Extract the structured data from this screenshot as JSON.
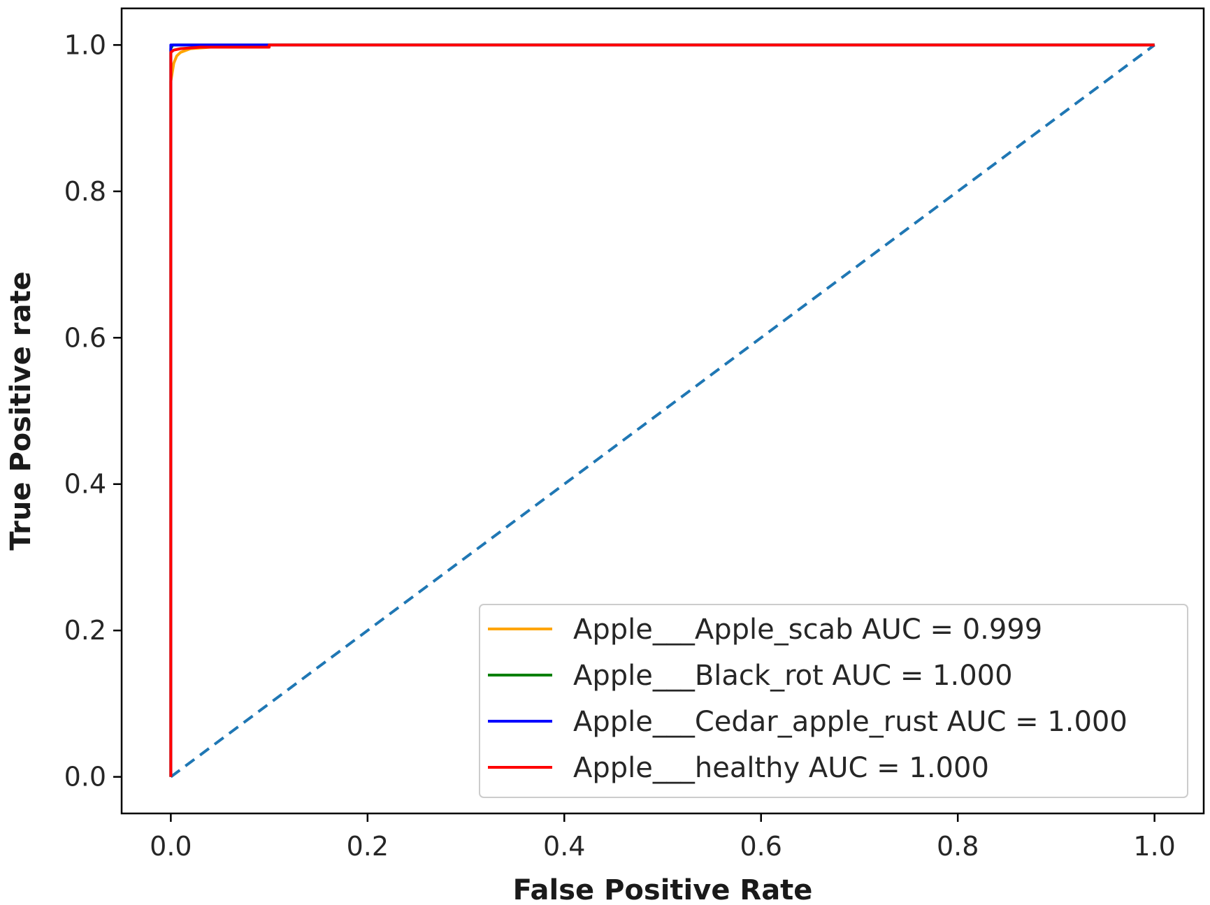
{
  "chart_data": {
    "type": "line",
    "title": "",
    "xlabel": "False Positive Rate",
    "ylabel": "True Positive rate",
    "xlim": [
      -0.05,
      1.05
    ],
    "ylim": [
      -0.05,
      1.05
    ],
    "xticks": [
      "0.0",
      "0.2",
      "0.4",
      "0.6",
      "0.8",
      "1.0"
    ],
    "yticks": [
      "0.0",
      "0.2",
      "0.4",
      "0.6",
      "0.8",
      "1.0"
    ],
    "grid": false,
    "legend_position": "lower-right",
    "series": [
      {
        "name": "Apple___Apple_scab AUC = 0.999",
        "color": "#ffa500",
        "x": [
          0.0,
          0.0,
          0.003,
          0.006,
          0.01,
          0.02,
          0.05,
          0.1,
          1.0
        ],
        "y": [
          0.0,
          0.95,
          0.975,
          0.985,
          0.99,
          0.995,
          0.998,
          1.0,
          1.0
        ]
      },
      {
        "name": "Apple___Black_rot AUC = 1.000",
        "color": "#008000",
        "x": [
          0.0,
          0.0,
          0.002,
          0.01,
          1.0
        ],
        "y": [
          0.0,
          0.995,
          1.0,
          1.0,
          1.0
        ]
      },
      {
        "name": "Apple___Cedar_apple_rust AUC = 1.000",
        "color": "#0000ff",
        "x": [
          0.0,
          0.0,
          0.1,
          1.0
        ],
        "y": [
          0.0,
          1.0,
          1.0,
          1.0
        ]
      },
      {
        "name": "Apple___healthy AUC = 1.000",
        "color": "#ff0000",
        "x": [
          0.0,
          0.0,
          0.003,
          0.01,
          0.03,
          0.1,
          0.1,
          1.0
        ],
        "y": [
          0.0,
          0.99,
          0.993,
          0.995,
          0.997,
          0.997,
          1.0,
          1.0
        ]
      }
    ],
    "reference_line": {
      "color": "#1f77b4",
      "style": "dashed",
      "x": [
        0.0,
        1.0
      ],
      "y": [
        0.0,
        1.0
      ]
    }
  }
}
